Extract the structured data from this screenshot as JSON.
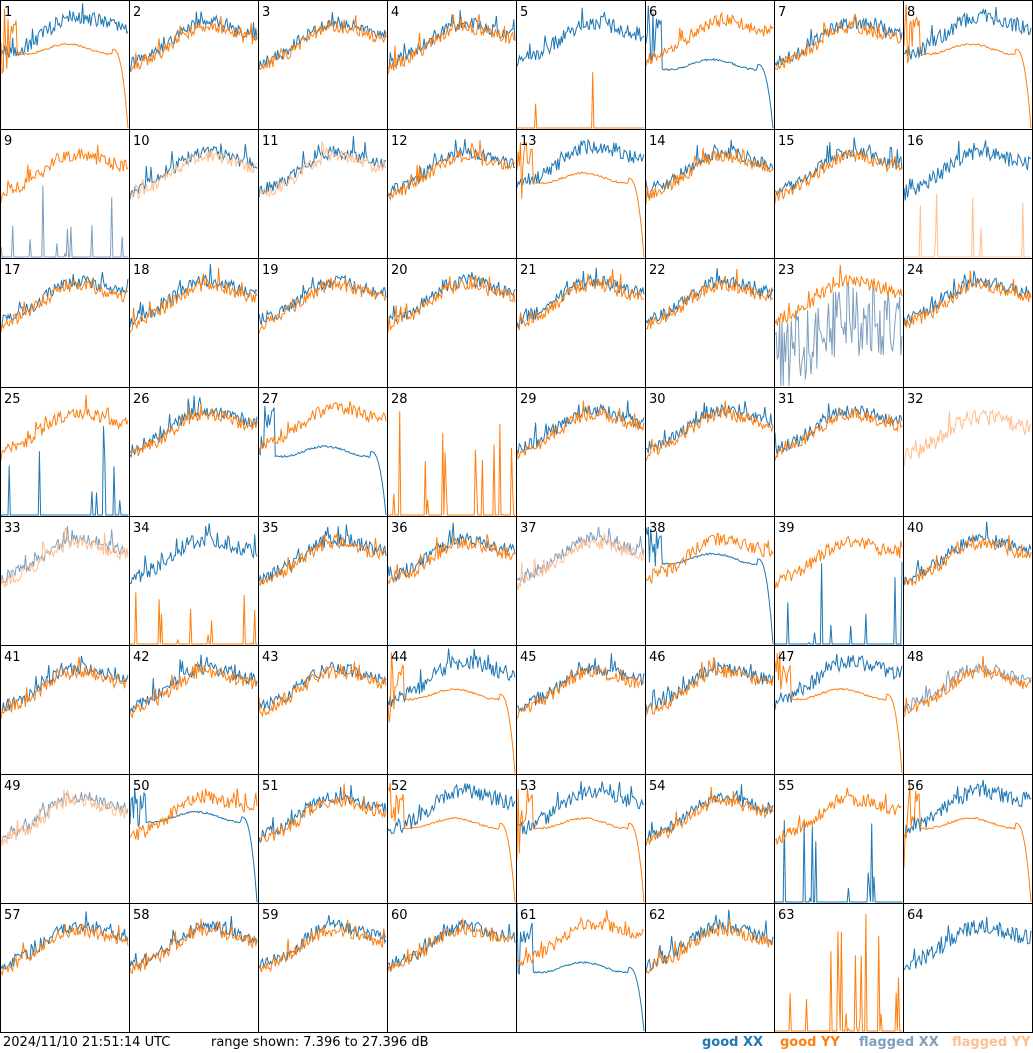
{
  "footer": {
    "timestamp": "2024/11/10 21:51:14 UTC",
    "range": "range shown: 7.396 to 27.396 dB"
  },
  "legend": {
    "good_xx": "good XX",
    "good_yy": "good YY",
    "flagged_xx": "flagged XX",
    "flagged_yy": "flagged YY"
  },
  "colors": {
    "good_xx": "#1f77b4",
    "good_yy": "#ff7f0e",
    "flagged_xx": "#7f9fbf",
    "flagged_yy": "#ffbf8f",
    "border": "#000000"
  },
  "chart_data": {
    "type": "line",
    "ylim": [
      7.396,
      27.396
    ],
    "unit": "dB",
    "grid": {
      "rows": 8,
      "cols": 8
    },
    "panels": [
      {
        "id": 1,
        "xx": "good",
        "yy": "good",
        "shape": "yy_rolloff"
      },
      {
        "id": 2,
        "xx": "good",
        "yy": "good",
        "shape": "normal"
      },
      {
        "id": 3,
        "xx": "good",
        "yy": "good",
        "shape": "normal"
      },
      {
        "id": 4,
        "xx": "good",
        "yy": "good",
        "shape": "normal"
      },
      {
        "id": 5,
        "xx": "good",
        "yy": "good",
        "shape": "yy_spikes"
      },
      {
        "id": 6,
        "xx": "good",
        "yy": "good",
        "shape": "xx_rolloff"
      },
      {
        "id": 7,
        "xx": "good",
        "yy": "good",
        "shape": "normal"
      },
      {
        "id": 8,
        "xx": "good",
        "yy": "good",
        "shape": "yy_rolloff"
      },
      {
        "id": 9,
        "xx": "flagged",
        "yy": "good",
        "shape": "xx_spikes"
      },
      {
        "id": 10,
        "xx": "good",
        "yy": "flagged",
        "shape": "normal"
      },
      {
        "id": 11,
        "xx": "good",
        "yy": "flagged",
        "shape": "normal"
      },
      {
        "id": 12,
        "xx": "good",
        "yy": "good",
        "shape": "normal"
      },
      {
        "id": 13,
        "xx": "good",
        "yy": "good",
        "shape": "yy_rolloff"
      },
      {
        "id": 14,
        "xx": "good",
        "yy": "good",
        "shape": "normal"
      },
      {
        "id": 15,
        "xx": "good",
        "yy": "good",
        "shape": "normal"
      },
      {
        "id": 16,
        "xx": "good",
        "yy": "flagged",
        "shape": "yy_spikes"
      },
      {
        "id": 17,
        "xx": "good",
        "yy": "good",
        "shape": "normal"
      },
      {
        "id": 18,
        "xx": "good",
        "yy": "good",
        "shape": "normal"
      },
      {
        "id": 19,
        "xx": "good",
        "yy": "good",
        "shape": "normal"
      },
      {
        "id": 20,
        "xx": "good",
        "yy": "good",
        "shape": "normal"
      },
      {
        "id": 21,
        "xx": "good",
        "yy": "good",
        "shape": "normal"
      },
      {
        "id": 22,
        "xx": "good",
        "yy": "good",
        "shape": "normal"
      },
      {
        "id": 23,
        "xx": "flagged",
        "yy": "good",
        "shape": "xx_noisy"
      },
      {
        "id": 24,
        "xx": "good",
        "yy": "good",
        "shape": "normal"
      },
      {
        "id": 25,
        "xx": "good",
        "yy": "good",
        "shape": "xx_spikes"
      },
      {
        "id": 26,
        "xx": "good",
        "yy": "good",
        "shape": "normal"
      },
      {
        "id": 27,
        "xx": "good",
        "yy": "good",
        "shape": "xx_rolloff"
      },
      {
        "id": 28,
        "xx": "good",
        "yy": "good",
        "shape": "yy_spikes_only"
      },
      {
        "id": 29,
        "xx": "good",
        "yy": "good",
        "shape": "normal"
      },
      {
        "id": 30,
        "xx": "good",
        "yy": "good",
        "shape": "normal"
      },
      {
        "id": 31,
        "xx": "good",
        "yy": "good",
        "shape": "normal"
      },
      {
        "id": 32,
        "xx": "flagged",
        "yy": "flagged",
        "shape": "yy_only"
      },
      {
        "id": 33,
        "xx": "flagged",
        "yy": "flagged",
        "shape": "normal"
      },
      {
        "id": 34,
        "xx": "good",
        "yy": "good",
        "shape": "yy_spikes"
      },
      {
        "id": 35,
        "xx": "good",
        "yy": "good",
        "shape": "normal"
      },
      {
        "id": 36,
        "xx": "good",
        "yy": "good",
        "shape": "normal"
      },
      {
        "id": 37,
        "xx": "flagged",
        "yy": "flagged",
        "shape": "normal"
      },
      {
        "id": 38,
        "xx": "good",
        "yy": "good",
        "shape": "xx_rolloff_mild"
      },
      {
        "id": 39,
        "xx": "good",
        "yy": "good",
        "shape": "xx_spikes"
      },
      {
        "id": 40,
        "xx": "good",
        "yy": "good",
        "shape": "normal"
      },
      {
        "id": 41,
        "xx": "good",
        "yy": "good",
        "shape": "normal"
      },
      {
        "id": 42,
        "xx": "good",
        "yy": "good",
        "shape": "normal"
      },
      {
        "id": 43,
        "xx": "good",
        "yy": "good",
        "shape": "normal"
      },
      {
        "id": 44,
        "xx": "good",
        "yy": "good",
        "shape": "yy_rolloff"
      },
      {
        "id": 45,
        "xx": "good",
        "yy": "good",
        "shape": "normal"
      },
      {
        "id": 46,
        "xx": "good",
        "yy": "good",
        "shape": "normal"
      },
      {
        "id": 47,
        "xx": "good",
        "yy": "good",
        "shape": "yy_rolloff"
      },
      {
        "id": 48,
        "xx": "flagged",
        "yy": "good",
        "shape": "normal"
      },
      {
        "id": 49,
        "xx": "flagged",
        "yy": "flagged",
        "shape": "normal"
      },
      {
        "id": 50,
        "xx": "good",
        "yy": "good",
        "shape": "xx_rolloff_mild"
      },
      {
        "id": 51,
        "xx": "good",
        "yy": "good",
        "shape": "normal"
      },
      {
        "id": 52,
        "xx": "good",
        "yy": "good",
        "shape": "yy_rolloff"
      },
      {
        "id": 53,
        "xx": "good",
        "yy": "good",
        "shape": "yy_rolloff"
      },
      {
        "id": 54,
        "xx": "good",
        "yy": "good",
        "shape": "normal"
      },
      {
        "id": 55,
        "xx": "good",
        "yy": "good",
        "shape": "xx_spikes"
      },
      {
        "id": 56,
        "xx": "good",
        "yy": "good",
        "shape": "yy_rolloff"
      },
      {
        "id": 57,
        "xx": "good",
        "yy": "good",
        "shape": "normal"
      },
      {
        "id": 58,
        "xx": "good",
        "yy": "good",
        "shape": "normal"
      },
      {
        "id": 59,
        "xx": "good",
        "yy": "good",
        "shape": "normal"
      },
      {
        "id": 60,
        "xx": "good",
        "yy": "good",
        "shape": "normal"
      },
      {
        "id": 61,
        "xx": "good",
        "yy": "good",
        "shape": "xx_rolloff"
      },
      {
        "id": 62,
        "xx": "good",
        "yy": "good",
        "shape": "normal"
      },
      {
        "id": 63,
        "xx": "good",
        "yy": "good",
        "shape": "yy_spikes_only"
      },
      {
        "id": 64,
        "xx": "good",
        "yy": "flagged",
        "shape": "xx_only"
      }
    ]
  }
}
